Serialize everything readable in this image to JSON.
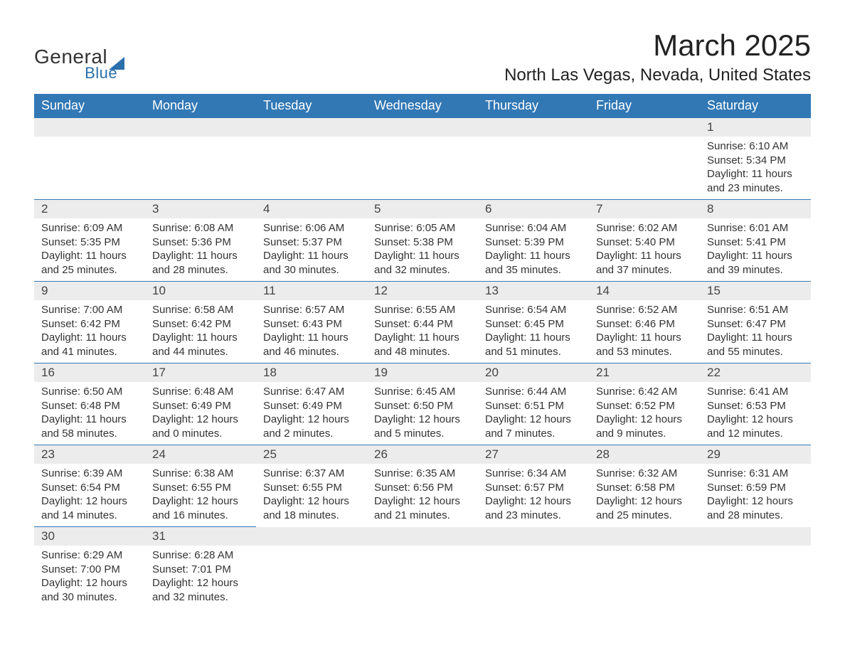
{
  "logo": {
    "line1": "General",
    "line2": "Blue"
  },
  "title": "March 2025",
  "location": "North Las Vegas, Nevada, United States",
  "colors": {
    "header_bg": "#3178b5",
    "header_text": "#ffffff",
    "daynum_bg": "#ececec",
    "daynum_text": "#444444",
    "body_text": "#333333",
    "title_text": "#222222",
    "border": "#3178b5",
    "page_bg": "#ffffff",
    "logo_accent": "#2b6fab"
  },
  "typography": {
    "title_fontsize": 42,
    "location_fontsize": 24,
    "header_fontsize": 18,
    "daynum_fontsize": 17,
    "body_fontsize": 15,
    "logo_fontsize": 28
  },
  "weekdays": [
    "Sunday",
    "Monday",
    "Tuesday",
    "Wednesday",
    "Thursday",
    "Friday",
    "Saturday"
  ],
  "layout": {
    "columns": 7,
    "rows": 6,
    "first_day_column_index": 6
  },
  "days": [
    {
      "n": 1,
      "sunrise": "6:10 AM",
      "sunset": "5:34 PM",
      "daylight": "11 hours and 23 minutes."
    },
    {
      "n": 2,
      "sunrise": "6:09 AM",
      "sunset": "5:35 PM",
      "daylight": "11 hours and 25 minutes."
    },
    {
      "n": 3,
      "sunrise": "6:08 AM",
      "sunset": "5:36 PM",
      "daylight": "11 hours and 28 minutes."
    },
    {
      "n": 4,
      "sunrise": "6:06 AM",
      "sunset": "5:37 PM",
      "daylight": "11 hours and 30 minutes."
    },
    {
      "n": 5,
      "sunrise": "6:05 AM",
      "sunset": "5:38 PM",
      "daylight": "11 hours and 32 minutes."
    },
    {
      "n": 6,
      "sunrise": "6:04 AM",
      "sunset": "5:39 PM",
      "daylight": "11 hours and 35 minutes."
    },
    {
      "n": 7,
      "sunrise": "6:02 AM",
      "sunset": "5:40 PM",
      "daylight": "11 hours and 37 minutes."
    },
    {
      "n": 8,
      "sunrise": "6:01 AM",
      "sunset": "5:41 PM",
      "daylight": "11 hours and 39 minutes."
    },
    {
      "n": 9,
      "sunrise": "7:00 AM",
      "sunset": "6:42 PM",
      "daylight": "11 hours and 41 minutes."
    },
    {
      "n": 10,
      "sunrise": "6:58 AM",
      "sunset": "6:42 PM",
      "daylight": "11 hours and 44 minutes."
    },
    {
      "n": 11,
      "sunrise": "6:57 AM",
      "sunset": "6:43 PM",
      "daylight": "11 hours and 46 minutes."
    },
    {
      "n": 12,
      "sunrise": "6:55 AM",
      "sunset": "6:44 PM",
      "daylight": "11 hours and 48 minutes."
    },
    {
      "n": 13,
      "sunrise": "6:54 AM",
      "sunset": "6:45 PM",
      "daylight": "11 hours and 51 minutes."
    },
    {
      "n": 14,
      "sunrise": "6:52 AM",
      "sunset": "6:46 PM",
      "daylight": "11 hours and 53 minutes."
    },
    {
      "n": 15,
      "sunrise": "6:51 AM",
      "sunset": "6:47 PM",
      "daylight": "11 hours and 55 minutes."
    },
    {
      "n": 16,
      "sunrise": "6:50 AM",
      "sunset": "6:48 PM",
      "daylight": "11 hours and 58 minutes."
    },
    {
      "n": 17,
      "sunrise": "6:48 AM",
      "sunset": "6:49 PM",
      "daylight": "12 hours and 0 minutes."
    },
    {
      "n": 18,
      "sunrise": "6:47 AM",
      "sunset": "6:49 PM",
      "daylight": "12 hours and 2 minutes."
    },
    {
      "n": 19,
      "sunrise": "6:45 AM",
      "sunset": "6:50 PM",
      "daylight": "12 hours and 5 minutes."
    },
    {
      "n": 20,
      "sunrise": "6:44 AM",
      "sunset": "6:51 PM",
      "daylight": "12 hours and 7 minutes."
    },
    {
      "n": 21,
      "sunrise": "6:42 AM",
      "sunset": "6:52 PM",
      "daylight": "12 hours and 9 minutes."
    },
    {
      "n": 22,
      "sunrise": "6:41 AM",
      "sunset": "6:53 PM",
      "daylight": "12 hours and 12 minutes."
    },
    {
      "n": 23,
      "sunrise": "6:39 AM",
      "sunset": "6:54 PM",
      "daylight": "12 hours and 14 minutes."
    },
    {
      "n": 24,
      "sunrise": "6:38 AM",
      "sunset": "6:55 PM",
      "daylight": "12 hours and 16 minutes."
    },
    {
      "n": 25,
      "sunrise": "6:37 AM",
      "sunset": "6:55 PM",
      "daylight": "12 hours and 18 minutes."
    },
    {
      "n": 26,
      "sunrise": "6:35 AM",
      "sunset": "6:56 PM",
      "daylight": "12 hours and 21 minutes."
    },
    {
      "n": 27,
      "sunrise": "6:34 AM",
      "sunset": "6:57 PM",
      "daylight": "12 hours and 23 minutes."
    },
    {
      "n": 28,
      "sunrise": "6:32 AM",
      "sunset": "6:58 PM",
      "daylight": "12 hours and 25 minutes."
    },
    {
      "n": 29,
      "sunrise": "6:31 AM",
      "sunset": "6:59 PM",
      "daylight": "12 hours and 28 minutes."
    },
    {
      "n": 30,
      "sunrise": "6:29 AM",
      "sunset": "7:00 PM",
      "daylight": "12 hours and 30 minutes."
    },
    {
      "n": 31,
      "sunrise": "6:28 AM",
      "sunset": "7:01 PM",
      "daylight": "12 hours and 32 minutes."
    }
  ],
  "labels": {
    "sunrise": "Sunrise:",
    "sunset": "Sunset:",
    "daylight": "Daylight:"
  }
}
